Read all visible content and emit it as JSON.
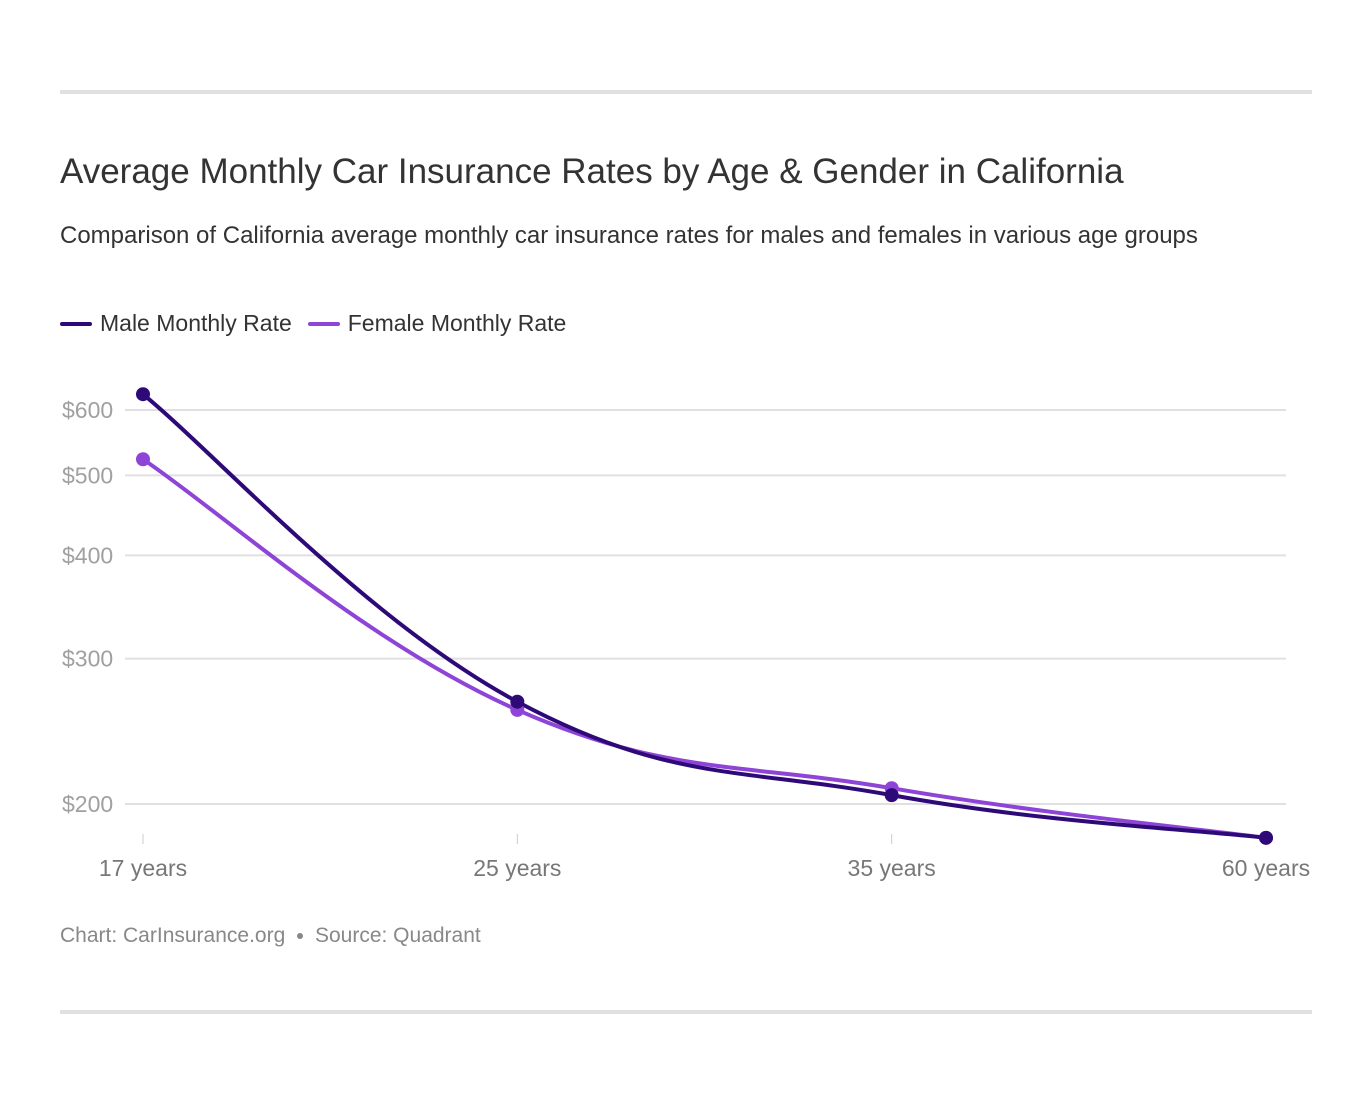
{
  "title": "Average Monthly Car Insurance Rates by Age & Gender in California",
  "subtitle": "Comparison of California average monthly car insurance rates for males and females in various age groups",
  "footer": {
    "chart_credit": "Chart: CarInsurance.org",
    "source": "Source: Quadrant"
  },
  "colors": {
    "male": "#2e0a78",
    "female": "#8e44d6",
    "grid": "#e0e0e0",
    "tick_label": "#a0a0a0",
    "x_label": "#777777"
  },
  "chart_data": {
    "type": "line",
    "title": "Average Monthly Car Insurance Rates by Age & Gender in California",
    "subtitle": "Comparison of California average monthly car insurance rates for males and females in various age groups",
    "categories": [
      "17 years",
      "25 years",
      "35 years",
      "60 years"
    ],
    "series": [
      {
        "name": "Male Monthly Rate",
        "values": [
          627,
          266,
          205,
          182
        ]
      },
      {
        "name": "Female Monthly Rate",
        "values": [
          523,
          260,
          209,
          182
        ]
      }
    ],
    "y_ticks": [
      200,
      300,
      400,
      500,
      600
    ],
    "y_tick_labels": [
      "$200",
      "$300",
      "$400",
      "$500",
      "$600"
    ],
    "y_scale": "log",
    "ylim": [
      182,
      630
    ],
    "grid": true,
    "legend_position": "top-left",
    "xlabel": "",
    "ylabel": ""
  }
}
